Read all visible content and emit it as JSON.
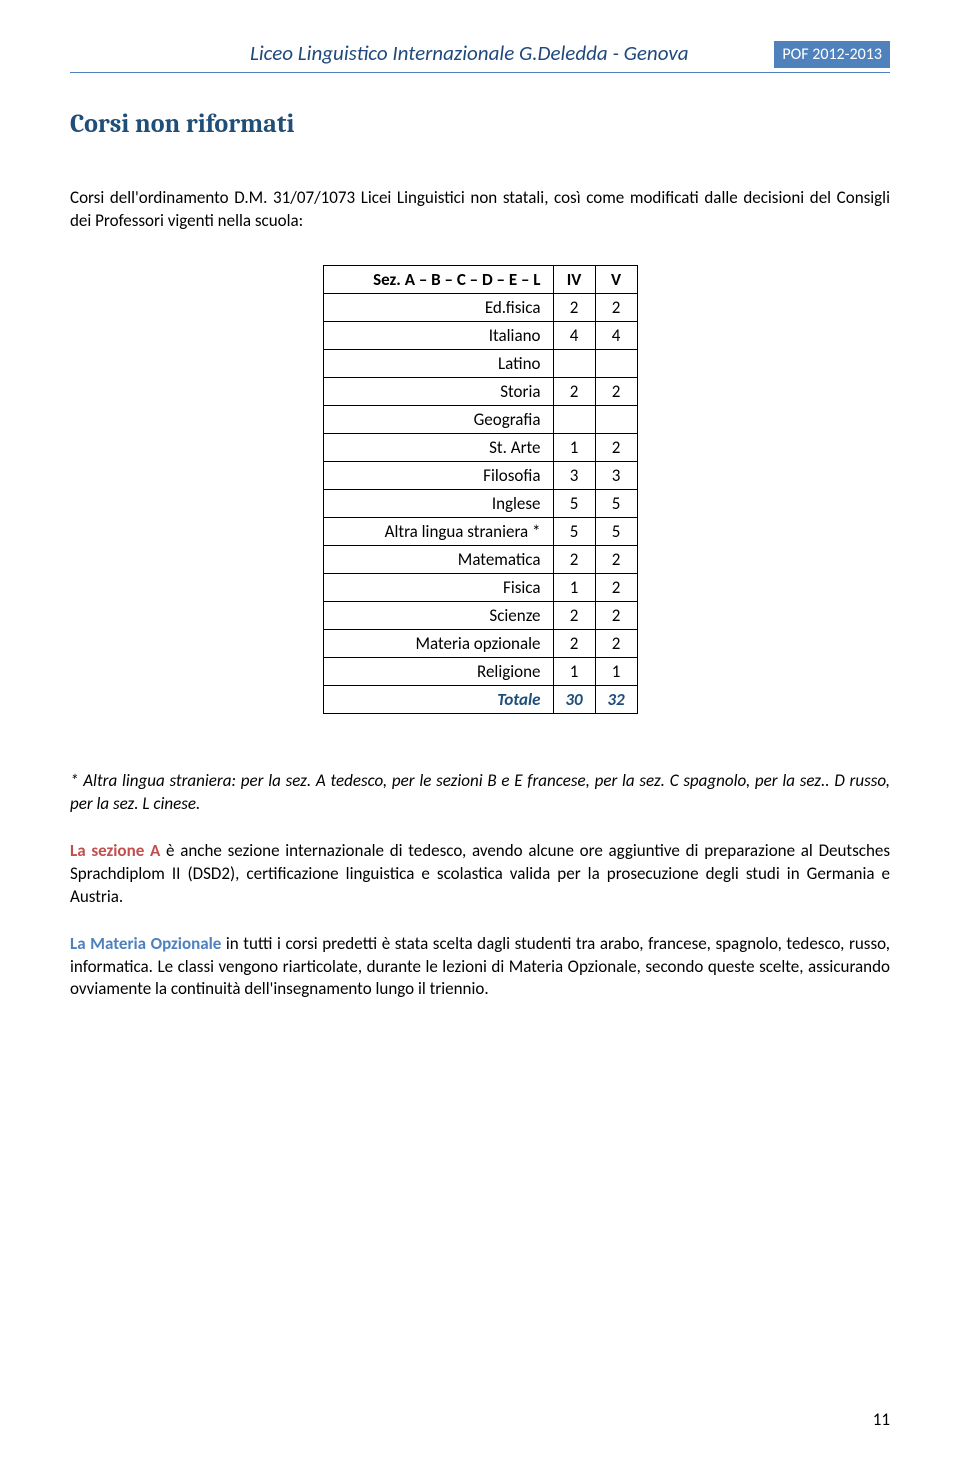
{
  "header": {
    "title": "Liceo Linguistico Internazionale G.Deledda - Genova",
    "badge": "POF 2012-2013"
  },
  "section_title": "Corsi non riformati",
  "intro": "Corsi dell'ordinamento D.M. 31/07/1073 Licei Linguistici non statali, così come modificati dalle decisioni del Consigli dei Professori vigenti nella scuola:",
  "table": {
    "header": {
      "c0": "Sez. A – B – C – D – E – L",
      "c1": "IV",
      "c2": "V"
    },
    "rows": [
      {
        "subject": "Ed.fisica",
        "iv": "2",
        "v": "2"
      },
      {
        "subject": "Italiano",
        "iv": "4",
        "v": "4"
      },
      {
        "subject": "Latino",
        "iv": "",
        "v": ""
      },
      {
        "subject": "Storia",
        "iv": "2",
        "v": "2"
      },
      {
        "subject": "Geografia",
        "iv": "",
        "v": ""
      },
      {
        "subject": "St. Arte",
        "iv": "1",
        "v": "2"
      },
      {
        "subject": "Filosofia",
        "iv": "3",
        "v": "3"
      },
      {
        "subject": "Inglese",
        "iv": "5",
        "v": "5"
      },
      {
        "subject": "Altra lingua straniera *",
        "iv": "5",
        "v": "5"
      },
      {
        "subject": "Matematica",
        "iv": "2",
        "v": "2"
      },
      {
        "subject": "Fisica",
        "iv": "1",
        "v": "2"
      },
      {
        "subject": "Scienze",
        "iv": "2",
        "v": "2"
      },
      {
        "subject": "Materia opzionale",
        "iv": "2",
        "v": "2"
      },
      {
        "subject": "Religione",
        "iv": "1",
        "v": "1"
      }
    ],
    "total": {
      "label": "Totale",
      "iv": "30",
      "v": "32"
    }
  },
  "note": "* Altra lingua straniera: per la sez. A tedesco, per le sezioni B e E francese, per la sez. C spagnolo, per la sez.. D russo, per la sez. L  cinese.",
  "para1": {
    "lead": "La sezione A",
    "text": " è anche sezione internazionale di tedesco, avendo alcune ore aggiuntive di preparazione al Deutsches Sprachdiplom II (DSD2), certificazione linguistica e scolastica valida per la prosecuzione degli studi in Germania e Austria."
  },
  "para2": {
    "lead": "La Materia Opzionale",
    "text": " in tutti i corsi predetti è stata scelta dagli studenti tra arabo, francese, spagnolo, tedesco, russo, informatica.  Le classi vengono riarticolate, durante le lezioni di Materia Opzionale, secondo queste scelte, assicurando ovviamente la continuità dell'insegnamento lungo il triennio."
  },
  "page_number": "11"
}
